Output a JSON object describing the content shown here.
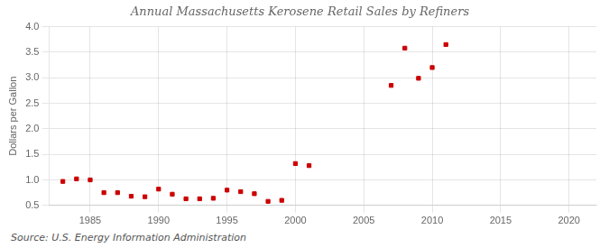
{
  "chart_data": {
    "type": "scatter",
    "title": "Annual Massachusetts Kerosene Retail Sales by Refiners",
    "ylabel": "Dollars per Gallon",
    "annotations": [
      "Source: U.S. Energy Information Administration"
    ],
    "x": [
      1983,
      1984,
      1985,
      1986,
      1987,
      1988,
      1989,
      1990,
      1991,
      1992,
      1993,
      1994,
      1995,
      1996,
      1997,
      1998,
      1999,
      2000,
      2001,
      2007,
      2008,
      2009,
      2010,
      2011
    ],
    "values": [
      0.97,
      1.02,
      1.0,
      0.75,
      0.75,
      0.68,
      0.67,
      0.82,
      0.72,
      0.63,
      0.63,
      0.64,
      0.8,
      0.77,
      0.73,
      0.58,
      0.6,
      1.32,
      1.28,
      2.85,
      3.58,
      2.99,
      3.2,
      3.65
    ],
    "color": "#cc0000",
    "marker": "square",
    "xlim": [
      1982,
      2022
    ],
    "xticks": [
      1985,
      1990,
      1995,
      2000,
      2005,
      2010,
      2015,
      2020
    ],
    "ylim": [
      0.5,
      4.0
    ],
    "yticks": [
      0.5,
      {
        "value": 1.0,
        "label": "1.0"
      },
      1.5,
      {
        "value": 2.0,
        "label": "2.0"
      },
      2.5,
      {
        "value": 3.0,
        "label": "3.0"
      },
      3.5,
      {
        "value": 4.0,
        "label": "4.0"
      }
    ],
    "grid": true
  }
}
